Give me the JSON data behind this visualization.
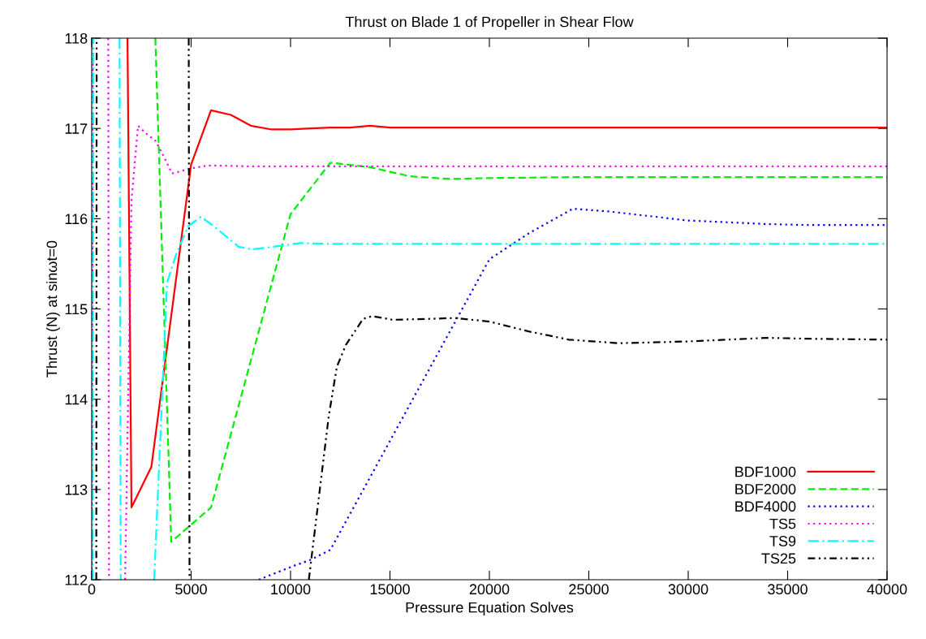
{
  "chart_data": {
    "type": "line",
    "title": "Thrust on Blade 1 of Propeller in Shear Flow",
    "xlabel": "Pressure Equation Solves",
    "ylabel": "Thrust (N) at sinωt=0",
    "xlim": [
      0,
      40000
    ],
    "xticks": [
      0,
      5000,
      10000,
      15000,
      20000,
      25000,
      30000,
      35000,
      40000
    ],
    "ylim": [
      112,
      118
    ],
    "yticks": [
      112,
      113,
      114,
      115,
      116,
      117,
      118
    ],
    "grid": false,
    "legend": "bottom right",
    "marker": "none",
    "series": [
      {
        "name": "BDF1000",
        "color": "#ff0000",
        "line_style": "solid",
        "x": [
          1800,
          2000,
          3000,
          5000,
          6000,
          7000,
          8000,
          9000,
          10000,
          11000,
          12000,
          13000,
          14000,
          15000,
          20000,
          25000,
          30000,
          35000,
          40000
        ],
        "values": [
          118,
          112.8,
          113.25,
          116.6,
          117.2,
          117.15,
          117.03,
          116.99,
          116.99,
          117.0,
          117.01,
          117.01,
          117.03,
          117.01,
          117.01,
          117.01,
          117.01,
          117.01,
          117.01
        ]
      },
      {
        "name": "BDF2000",
        "color": "#00ee00",
        "line_style": "dashed",
        "x": [
          3200,
          4000,
          6000,
          10000,
          12000,
          14000,
          16000,
          18000,
          20000,
          24000,
          30000,
          40000
        ],
        "values": [
          118,
          112.42,
          112.8,
          116.05,
          116.62,
          116.57,
          116.47,
          116.44,
          116.45,
          116.46,
          116.46,
          116.46
        ]
      },
      {
        "name": "BDF4000",
        "color": "#0000ff",
        "line_style": "dotted",
        "x": [
          8400,
          10000,
          11000,
          12000,
          20000,
          22000,
          24200,
          26000,
          28000,
          30000,
          32000,
          34000,
          36000,
          40000
        ],
        "values": [
          112,
          112.14,
          112.22,
          112.33,
          115.55,
          115.84,
          116.11,
          116.08,
          116.03,
          115.98,
          115.96,
          115.94,
          115.93,
          115.93
        ]
      },
      {
        "name": "TS5",
        "color": "#ff00ff",
        "line_style": "dotted",
        "x": [
          0,
          60,
          70,
          830,
          870,
          880,
          1680,
          2000,
          2330,
          2700,
          3220,
          3600,
          4040,
          4860,
          5840,
          8000,
          40000
        ],
        "values": [
          112,
          118,
          null,
          118,
          112,
          null,
          112,
          116.2,
          117.03,
          116.95,
          116.86,
          116.7,
          116.5,
          116.55,
          116.59,
          116.58,
          116.58
        ]
      },
      {
        "name": "TS9",
        "color": "#00ffff",
        "line_style": "dashdot",
        "x": [
          40,
          90,
          100,
          1400,
          1460,
          1470,
          3140,
          3790,
          4240,
          4860,
          5490,
          6120,
          7390,
          8080,
          9550,
          10500,
          12000,
          40000
        ],
        "values": [
          112,
          118,
          null,
          118,
          112,
          null,
          112,
          115.29,
          115.6,
          115.92,
          116.02,
          115.92,
          115.69,
          115.66,
          115.7,
          115.73,
          115.72,
          115.72
        ]
      },
      {
        "name": "TS25",
        "color": "#000000",
        "line_style": "dashdotdot",
        "x": [
          230,
          250,
          260,
          4880,
          4920,
          4930,
          10920,
          11920,
          12330,
          12780,
          13650,
          14120,
          15140,
          17000,
          18240,
          20000,
          22000,
          24000,
          26500,
          30000,
          34000,
          36000,
          40000
        ],
        "values": [
          112,
          118,
          null,
          118,
          112,
          null,
          112,
          113.81,
          114.36,
          114.6,
          114.89,
          114.92,
          114.88,
          114.89,
          114.9,
          114.86,
          114.75,
          114.66,
          114.62,
          114.64,
          114.68,
          114.67,
          114.66
        ]
      }
    ]
  }
}
